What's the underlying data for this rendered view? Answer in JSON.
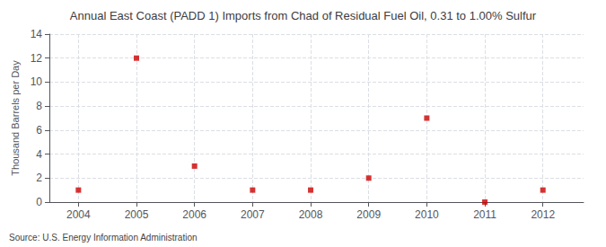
{
  "chart_data": {
    "type": "scatter",
    "title": "Annual East Coast (PADD 1) Imports from Chad of Residual Fuel Oil, 0.31 to 1.00% Sulfur",
    "ylabel": "Thousand Barrels per Day",
    "source": "Source: U.S. Energy Information Administration",
    "x": [
      2004,
      2005,
      2006,
      2007,
      2008,
      2009,
      2010,
      2011,
      2012
    ],
    "values": [
      1,
      12,
      3,
      1,
      1,
      2,
      7,
      0,
      1
    ],
    "color": "#cc0000",
    "marker": "square",
    "xlim": [
      2003.5,
      2012.7
    ],
    "xticks": [
      2004,
      2005,
      2006,
      2007,
      2008,
      2009,
      2010,
      2011,
      2012
    ],
    "ylim": [
      0,
      14
    ],
    "yticks": [
      0,
      2,
      4,
      6,
      8,
      10,
      12,
      14
    ],
    "grid": true
  }
}
